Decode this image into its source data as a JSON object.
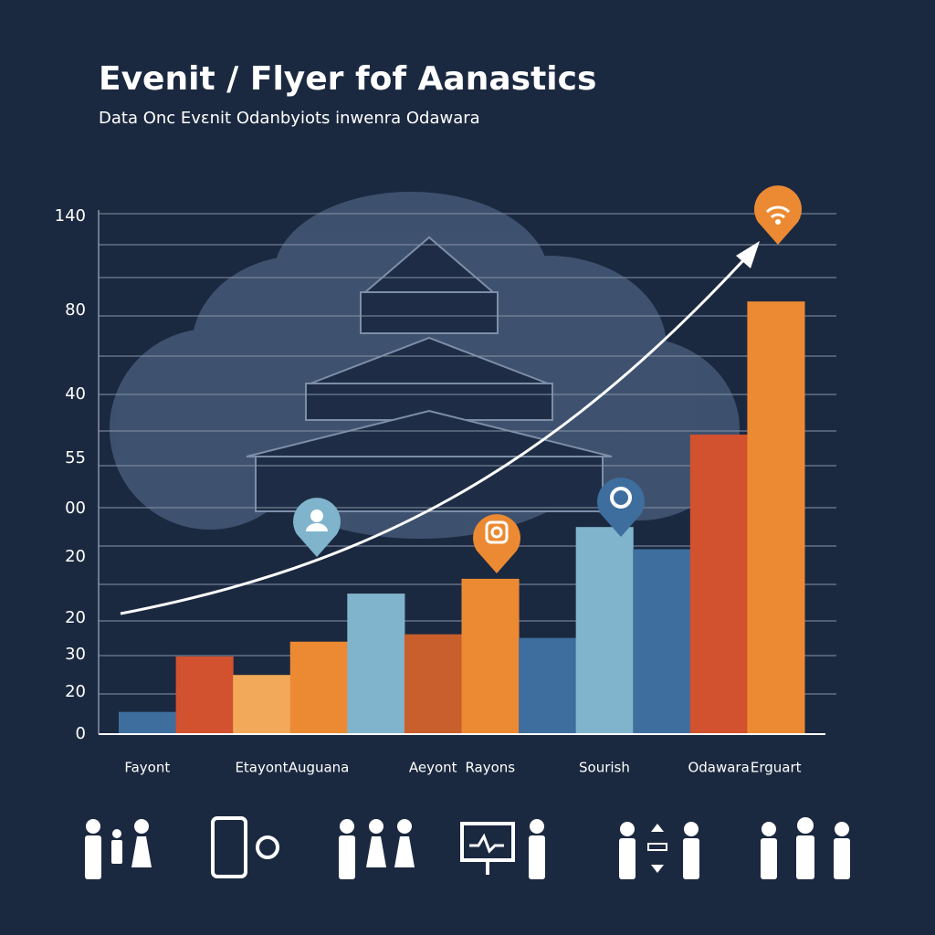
{
  "chart_data": {
    "type": "bar",
    "title": "Evenit / Flyer fof Aanastics",
    "subtitle": "Data Onc Evεnit Odanbyiots inwenra Odawara",
    "categories": [
      "Fayont",
      null,
      "Etayont",
      "Auguana",
      null,
      "Aeyont",
      "Rayons",
      null,
      "Sourish",
      null,
      "Odawara",
      "Erguart"
    ],
    "values": [
      6,
      21,
      16,
      25,
      38,
      27,
      42,
      26,
      56,
      50,
      81,
      117
    ],
    "colors": [
      "#3e6e9e",
      "#d2512f",
      "#f2a95a",
      "#ec8a33",
      "#7fb4cc",
      "#c95f2c",
      "#ec8a33",
      "#3e6e9e",
      "#7fb4cc",
      "#3e6e9e",
      "#d2512f",
      "#ec8a33"
    ],
    "ylim": [
      0,
      140
    ],
    "y_axis_labels": [
      "140",
      "80",
      "40",
      "55",
      "00",
      "20",
      "20",
      "30",
      "20",
      "0"
    ]
  }
}
